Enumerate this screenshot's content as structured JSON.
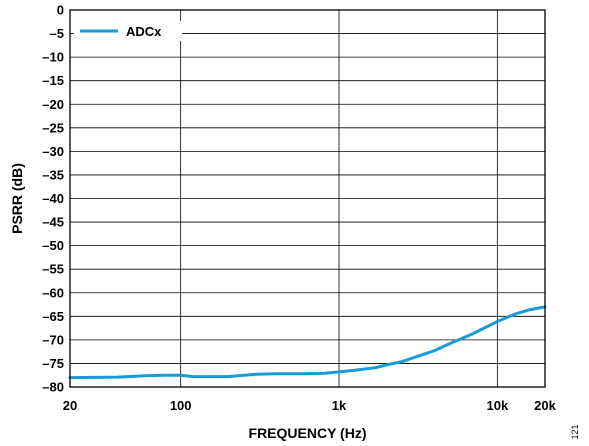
{
  "chart_data": {
    "type": "line",
    "title": "",
    "xlabel": "FREQUENCY (Hz)",
    "ylabel": "PSRR (dB)",
    "x_scale": "log",
    "xlim": [
      20,
      20000
    ],
    "ylim": [
      -80,
      0
    ],
    "x_ticks": [
      20,
      100,
      1000,
      10000,
      20000
    ],
    "x_tick_labels": [
      "20",
      "100",
      "1k",
      "10k",
      "20k"
    ],
    "y_ticks": [
      0,
      -5,
      -10,
      -15,
      -20,
      -25,
      -30,
      -35,
      -40,
      -45,
      -50,
      -55,
      -60,
      -65,
      -70,
      -75,
      -80
    ],
    "y_tick_labels": [
      "0",
      "–5",
      "–10",
      "–15",
      "–20",
      "–25",
      "–30",
      "–35",
      "–40",
      "–45",
      "–50",
      "–55",
      "–60",
      "–65",
      "–70",
      "–75",
      "–80"
    ],
    "grid": true,
    "legend_position": "top-left",
    "series": [
      {
        "name": "ADCx",
        "color": "#1a9bd7",
        "x": [
          20,
          40,
          60,
          80,
          100,
          120,
          150,
          200,
          250,
          300,
          400,
          500,
          600,
          800,
          1000,
          1300,
          1700,
          2000,
          2500,
          3000,
          4000,
          5000,
          7000,
          10000,
          13000,
          16000,
          20000
        ],
        "y": [
          -78,
          -77.9,
          -77.6,
          -77.5,
          -77.5,
          -77.8,
          -77.8,
          -77.8,
          -77.5,
          -77.3,
          -77.2,
          -77.2,
          -77.2,
          -77.1,
          -76.8,
          -76.4,
          -75.9,
          -75.3,
          -74.6,
          -73.7,
          -72.3,
          -70.8,
          -68.7,
          -66.1,
          -64.5,
          -63.6,
          -63
        ]
      }
    ]
  },
  "figure_id": "121"
}
